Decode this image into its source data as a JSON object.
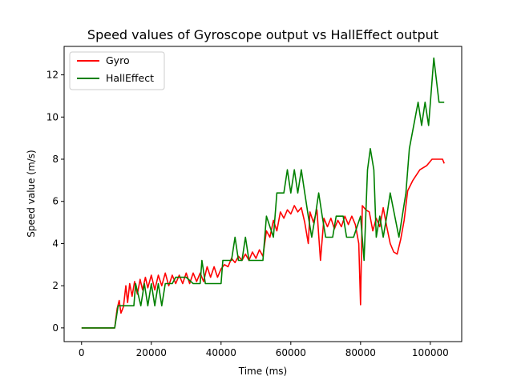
{
  "chart_data": {
    "type": "line",
    "title": "Speed values of Gyroscope output vs HallEffect output",
    "xlabel": "Time (ms)",
    "ylabel": "Speed value (m/s)",
    "xlim": [
      -5000,
      109000
    ],
    "ylim": [
      -0.65,
      13.35
    ],
    "x_ticks": [
      0,
      20000,
      40000,
      60000,
      80000,
      100000
    ],
    "y_ticks": [
      0,
      2,
      4,
      6,
      8,
      10,
      12
    ],
    "grid": false,
    "legend_position": "upper-left",
    "series": [
      {
        "name": "Gyro",
        "color": "#ff0000",
        "points": [
          [
            0,
            0
          ],
          [
            9500,
            0
          ],
          [
            10200,
            0.9
          ],
          [
            10800,
            1.3
          ],
          [
            11300,
            0.7
          ],
          [
            12000,
            1.0
          ],
          [
            12700,
            2.0
          ],
          [
            13200,
            1.2
          ],
          [
            13800,
            2.1
          ],
          [
            14500,
            1.5
          ],
          [
            15200,
            2.2
          ],
          [
            16000,
            1.6
          ],
          [
            16800,
            2.3
          ],
          [
            17500,
            1.8
          ],
          [
            18300,
            2.4
          ],
          [
            19000,
            1.9
          ],
          [
            20000,
            2.5
          ],
          [
            21000,
            1.8
          ],
          [
            22000,
            2.5
          ],
          [
            23000,
            2.0
          ],
          [
            24000,
            2.6
          ],
          [
            25000,
            2.0
          ],
          [
            26000,
            2.5
          ],
          [
            27000,
            2.1
          ],
          [
            28000,
            2.5
          ],
          [
            29000,
            2.1
          ],
          [
            30000,
            2.6
          ],
          [
            31000,
            2.1
          ],
          [
            32000,
            2.6
          ],
          [
            33000,
            2.2
          ],
          [
            34000,
            2.6
          ],
          [
            35000,
            2.2
          ],
          [
            36000,
            2.9
          ],
          [
            37000,
            2.4
          ],
          [
            38000,
            2.9
          ],
          [
            39000,
            2.4
          ],
          [
            40000,
            2.8
          ],
          [
            41000,
            3.0
          ],
          [
            42000,
            2.9
          ],
          [
            43000,
            3.3
          ],
          [
            44000,
            3.1
          ],
          [
            45000,
            3.4
          ],
          [
            46000,
            3.2
          ],
          [
            47000,
            3.5
          ],
          [
            48000,
            3.2
          ],
          [
            49000,
            3.6
          ],
          [
            50000,
            3.3
          ],
          [
            51000,
            3.7
          ],
          [
            52000,
            3.4
          ],
          [
            53000,
            4.6
          ],
          [
            54000,
            4.3
          ],
          [
            55000,
            5.1
          ],
          [
            56000,
            4.6
          ],
          [
            57000,
            5.5
          ],
          [
            58000,
            5.2
          ],
          [
            59000,
            5.6
          ],
          [
            60000,
            5.4
          ],
          [
            61000,
            5.8
          ],
          [
            62000,
            5.5
          ],
          [
            63000,
            5.7
          ],
          [
            64000,
            5.0
          ],
          [
            65000,
            4.0
          ],
          [
            65500,
            5.5
          ],
          [
            66500,
            5.0
          ],
          [
            67500,
            5.6
          ],
          [
            68500,
            3.2
          ],
          [
            69500,
            5.2
          ],
          [
            70500,
            4.8
          ],
          [
            71500,
            5.2
          ],
          [
            72500,
            4.7
          ],
          [
            73500,
            5.1
          ],
          [
            74500,
            4.8
          ],
          [
            75500,
            5.3
          ],
          [
            76500,
            4.9
          ],
          [
            77500,
            5.3
          ],
          [
            78500,
            4.9
          ],
          [
            79500,
            4.0
          ],
          [
            80000,
            1.1
          ],
          [
            80500,
            5.8
          ],
          [
            81500,
            5.6
          ],
          [
            82500,
            5.5
          ],
          [
            83500,
            4.6
          ],
          [
            84500,
            5.2
          ],
          [
            85500,
            4.8
          ],
          [
            86500,
            5.7
          ],
          [
            87500,
            4.8
          ],
          [
            88500,
            4.0
          ],
          [
            89500,
            3.6
          ],
          [
            90500,
            3.5
          ],
          [
            91500,
            4.2
          ],
          [
            92500,
            5.1
          ],
          [
            93500,
            6.5
          ],
          [
            95000,
            7.0
          ],
          [
            97000,
            7.5
          ],
          [
            99000,
            7.7
          ],
          [
            100500,
            8.0
          ],
          [
            102000,
            8.0
          ],
          [
            103500,
            8.0
          ],
          [
            104000,
            7.8
          ]
        ]
      },
      {
        "name": "HallEffect",
        "color": "#008000",
        "points": [
          [
            0,
            0
          ],
          [
            9500,
            0
          ],
          [
            10500,
            1.05
          ],
          [
            15000,
            1.05
          ],
          [
            15500,
            2.1
          ],
          [
            17000,
            1.05
          ],
          [
            18000,
            2.1
          ],
          [
            19000,
            1.05
          ],
          [
            20000,
            2.1
          ],
          [
            21000,
            1.05
          ],
          [
            22000,
            2.1
          ],
          [
            23000,
            1.05
          ],
          [
            24000,
            2.1
          ],
          [
            26000,
            2.1
          ],
          [
            27000,
            2.4
          ],
          [
            30000,
            2.4
          ],
          [
            32000,
            2.1
          ],
          [
            34000,
            2.1
          ],
          [
            34500,
            3.2
          ],
          [
            35500,
            2.1
          ],
          [
            40000,
            2.1
          ],
          [
            40500,
            3.2
          ],
          [
            43000,
            3.2
          ],
          [
            44000,
            4.3
          ],
          [
            45000,
            3.2
          ],
          [
            46000,
            3.2
          ],
          [
            47000,
            4.3
          ],
          [
            48000,
            3.2
          ],
          [
            52000,
            3.2
          ],
          [
            53000,
            5.3
          ],
          [
            55000,
            4.3
          ],
          [
            56000,
            6.4
          ],
          [
            58000,
            6.4
          ],
          [
            59000,
            7.5
          ],
          [
            60000,
            6.4
          ],
          [
            61000,
            7.5
          ],
          [
            62000,
            6.4
          ],
          [
            63000,
            7.5
          ],
          [
            64000,
            6.4
          ],
          [
            65000,
            5.3
          ],
          [
            66000,
            4.3
          ],
          [
            67000,
            5.3
          ],
          [
            68000,
            6.4
          ],
          [
            69000,
            5.3
          ],
          [
            70000,
            4.3
          ],
          [
            72000,
            4.3
          ],
          [
            73000,
            5.3
          ],
          [
            75000,
            5.3
          ],
          [
            76000,
            4.3
          ],
          [
            78000,
            4.3
          ],
          [
            80000,
            5.3
          ],
          [
            81000,
            3.2
          ],
          [
            82000,
            7.5
          ],
          [
            82800,
            8.5
          ],
          [
            83800,
            7.5
          ],
          [
            84500,
            4.3
          ],
          [
            85500,
            5.3
          ],
          [
            86500,
            4.3
          ],
          [
            87500,
            5.3
          ],
          [
            88500,
            6.4
          ],
          [
            91000,
            4.3
          ],
          [
            93000,
            6.4
          ],
          [
            94000,
            8.5
          ],
          [
            96500,
            10.7
          ],
          [
            97500,
            9.6
          ],
          [
            98500,
            10.7
          ],
          [
            99500,
            9.6
          ],
          [
            101000,
            12.8
          ],
          [
            102500,
            10.7
          ],
          [
            104000,
            10.7
          ]
        ]
      }
    ]
  }
}
